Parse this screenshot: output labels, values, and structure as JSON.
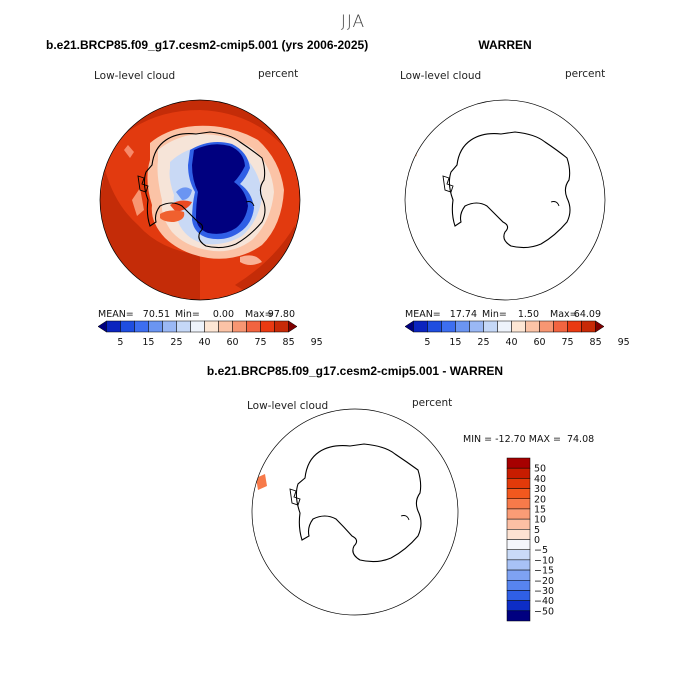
{
  "season": "JJA",
  "variable_label": "Low-level cloud",
  "units_label": "percent",
  "chart_data": [
    {
      "type": "heatmap",
      "projection": "south-polar stereographic",
      "title": "b.e21.BRCP85.f09_g17.cesm2-cmip5.001 (yrs 2006-2025)",
      "variable": "Low-level cloud",
      "units": "percent",
      "stats": {
        "mean_label": "MEAN=",
        "mean": "70.51",
        "min_label": "Min=",
        "min": "0.00",
        "max_label": "Max=",
        "max": "97.80"
      },
      "colorbar": {
        "orientation": "horizontal",
        "tick_labels": [
          "5",
          "15",
          "25",
          "40",
          "60",
          "75",
          "85",
          "95"
        ],
        "colors": [
          "#00007f",
          "#0b24bf",
          "#1f4ee0",
          "#3d6ef0",
          "#6b95f2",
          "#9ab8f5",
          "#c5d8f7",
          "#eef3fb",
          "#fde6d4",
          "#fbc3a6",
          "#f79672",
          "#f26440",
          "#ea3a12",
          "#c82a07",
          "#7f0000"
        ]
      }
    },
    {
      "type": "heatmap",
      "projection": "south-polar stereographic",
      "title": "WARREN",
      "variable": "Low-level cloud",
      "units": "percent",
      "stats": {
        "mean_label": "MEAN=",
        "mean": "17.74",
        "min_label": "Min=",
        "min": "1.50",
        "max_label": "Max=",
        "max": "64.09"
      },
      "colorbar": {
        "orientation": "horizontal",
        "tick_labels": [
          "5",
          "15",
          "25",
          "40",
          "60",
          "75",
          "85",
          "95"
        ],
        "colors": [
          "#00007f",
          "#0b24bf",
          "#1f4ee0",
          "#3d6ef0",
          "#6b95f2",
          "#9ab8f5",
          "#c5d8f7",
          "#eef3fb",
          "#fde6d4",
          "#fbc3a6",
          "#f79672",
          "#f26440",
          "#ea3a12",
          "#c82a07",
          "#7f0000"
        ]
      }
    },
    {
      "type": "heatmap",
      "projection": "south-polar stereographic",
      "title": "b.e21.BRCP85.f09_g17.cesm2-cmip5.001 - WARREN",
      "variable": "Low-level cloud",
      "units": "percent",
      "stats_text": "MIN = -12.70 MAX =  74.08",
      "colorbar": {
        "orientation": "vertical",
        "tick_labels": [
          "50",
          "40",
          "30",
          "20",
          "15",
          "10",
          "5",
          "0",
          "−5",
          "−10",
          "−15",
          "−20",
          "−30",
          "−40",
          "−50"
        ],
        "colors": [
          "#a60000",
          "#c81c00",
          "#e23a0a",
          "#f2581e",
          "#f77a4a",
          "#fa9c76",
          "#fcbfa4",
          "#fde2d2",
          "#f4f6fb",
          "#c9daf7",
          "#a8c2f6",
          "#7ea2f3",
          "#5784ef",
          "#2f5fe6",
          "#0d2dc6",
          "#000080"
        ]
      }
    }
  ]
}
